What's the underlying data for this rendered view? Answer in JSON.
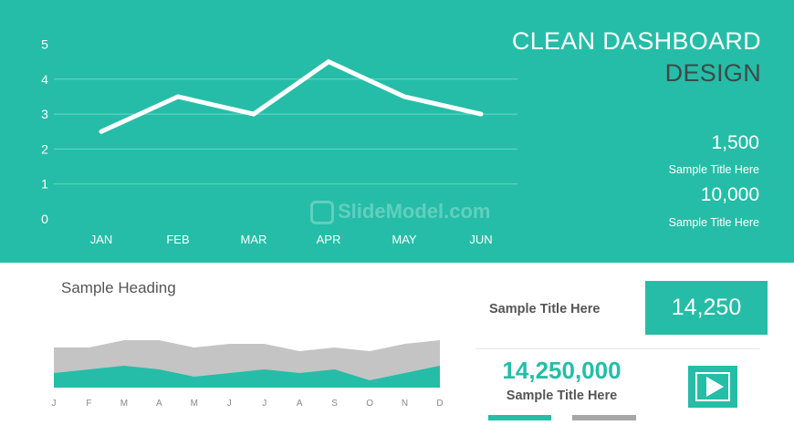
{
  "theme": {
    "accent": "#25BDA7",
    "dark_text": "#3d4a48",
    "gray_fill": "#C4C4C4",
    "body_text": "#555555"
  },
  "header": {
    "title_line1": "CLEAN DASHBOARD",
    "title_line2": "DESIGN"
  },
  "stats": [
    {
      "value": "1,500",
      "label": "Sample Title Here"
    },
    {
      "value": "10,000",
      "label": "Sample Title Here"
    }
  ],
  "watermark": "SlideModel.com",
  "chart_data": [
    {
      "type": "line",
      "categories": [
        "JAN",
        "FEB",
        "MAR",
        "APR",
        "MAY",
        "JUN"
      ],
      "values": [
        2.5,
        3.5,
        3.0,
        4.5,
        3.5,
        3.0
      ],
      "ylim": [
        0,
        5
      ],
      "yticks": [
        "0",
        "1",
        "2",
        "3",
        "4",
        "5"
      ],
      "title": "",
      "xlabel": "",
      "ylabel": "",
      "grid": true
    },
    {
      "type": "area",
      "heading": "Sample Heading",
      "categories": [
        "J",
        "F",
        "M",
        "A",
        "M",
        "J",
        "J",
        "A",
        "S",
        "O",
        "N",
        "D"
      ],
      "series": [
        {
          "values": [
            4,
            5,
            6,
            5,
            3,
            4,
            5,
            4,
            5,
            2,
            4,
            6
          ],
          "color": "#25BDA7"
        },
        {
          "values": [
            11,
            11,
            13,
            13,
            11,
            12,
            12,
            10,
            11,
            10,
            12,
            13
          ],
          "color": "#C4C4C4"
        }
      ],
      "ylim": [
        0,
        13
      ],
      "grid": false
    }
  ],
  "panel": {
    "row1_label": "Sample Title Here",
    "row1_value": "14,250",
    "big_value": "14,250,000",
    "big_label": "Sample Title Here",
    "play_icon": "play-icon"
  }
}
